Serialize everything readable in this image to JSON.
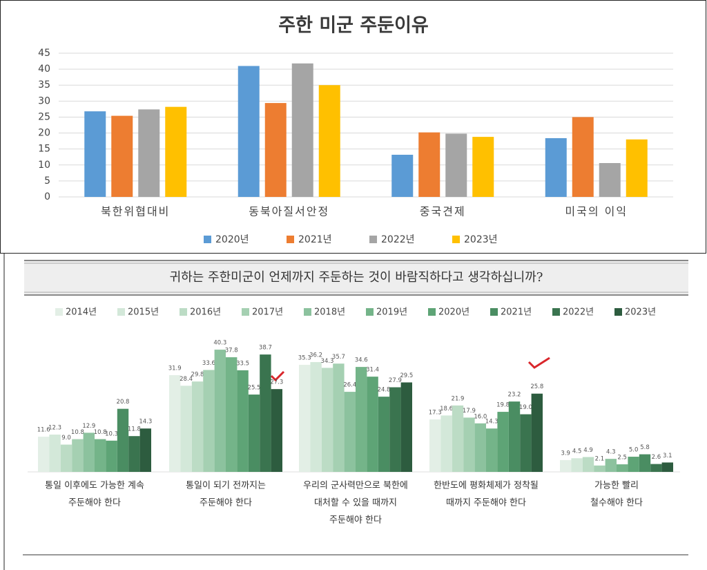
{
  "chart_data": [
    {
      "type": "bar",
      "title": "주한 미군 주둔이유",
      "categories": [
        "북한위협대비",
        "동북아질서안정",
        "중국견제",
        "미국의 이익"
      ],
      "series": [
        {
          "name": "2020년",
          "color": "#5b9bd5",
          "values": [
            26.8,
            41,
            13.2,
            18.4
          ]
        },
        {
          "name": "2021년",
          "color": "#ed7d31",
          "values": [
            25.4,
            29.4,
            20.2,
            25
          ]
        },
        {
          "name": "2022년",
          "color": "#a5a5a5",
          "values": [
            27.4,
            41.8,
            19.8,
            10.6
          ]
        },
        {
          "name": "2023년",
          "color": "#ffc000",
          "values": [
            28.2,
            35,
            18.8,
            18
          ]
        }
      ],
      "ylim": [
        0,
        45
      ],
      "yticks": [
        0,
        5,
        10,
        15,
        20,
        25,
        30,
        35,
        40,
        45
      ],
      "grid": true,
      "legend": "bottom"
    },
    {
      "type": "bar",
      "title": "귀하는 주한미군이 언제까지 주둔하는 것이 바람직하다고 생각하십니까?",
      "categories": [
        [
          "통일 이후에도 가능한 계속",
          "주둔해야 한다"
        ],
        [
          "통일이 되기 전까지는",
          "주둔해야 한다"
        ],
        [
          "우리의 군사력만으로 북한에",
          "대처할 수 있을 때까지",
          "주둔해야 한다"
        ],
        [
          "한반도에 평화체제가 정착될",
          "때까지 주둔해야 한다"
        ],
        [
          "가능한 빨리",
          "철수해야 한다"
        ]
      ],
      "series": [
        {
          "name": "2014년",
          "color": "#e3efe6",
          "values": [
            11.6,
            31.9,
            35.3,
            17.3,
            3.9
          ],
          "value_labels": [
            "11.6",
            "31.9",
            "35.3",
            "17.3",
            "3.9"
          ]
        },
        {
          "name": "2015년",
          "color": "#d3e8d9",
          "values": [
            12.3,
            28.4,
            36.2,
            18.6,
            4.5
          ],
          "value_labels": [
            "12.3",
            "28.4",
            "36.2",
            "18.6",
            "4.5"
          ]
        },
        {
          "name": "2016년",
          "color": "#bcdcc5",
          "values": [
            9.0,
            29.8,
            34.3,
            21.9,
            4.9
          ],
          "value_labels": [
            "9.0",
            "29.8",
            "34.3",
            "21.9",
            "4.9"
          ]
        },
        {
          "name": "2017년",
          "color": "#a5d0b2",
          "values": [
            10.8,
            33.6,
            35.7,
            17.9,
            2.1
          ],
          "value_labels": [
            "10.8",
            "33.6",
            "35.7",
            "17.9",
            "2.1"
          ]
        },
        {
          "name": "2018년",
          "color": "#8cc29e",
          "values": [
            12.9,
            40.3,
            26.4,
            16.0,
            4.3
          ],
          "value_labels": [
            "12.9",
            "40.3",
            "26.4",
            "16.0",
            "4.3"
          ]
        },
        {
          "name": "2019년",
          "color": "#74b489",
          "values": [
            10.8,
            37.8,
            34.6,
            14.3,
            2.5
          ],
          "value_labels": [
            "10.8",
            "37.8",
            "34.6",
            "14.3",
            "2.5"
          ]
        },
        {
          "name": "2020년",
          "color": "#5ea476",
          "values": [
            10.3,
            33.5,
            31.4,
            19.8,
            5.0
          ],
          "value_labels": [
            "10.3",
            "33.5",
            "31.4",
            "19.8",
            "5.0"
          ]
        },
        {
          "name": "2021년",
          "color": "#4a8d62",
          "values": [
            20.8,
            25.5,
            24.8,
            23.2,
            5.8
          ],
          "value_labels": [
            "20.8",
            "25.5",
            "24.8",
            "23.2",
            "5.8"
          ]
        },
        {
          "name": "2022년",
          "color": "#3a744f",
          "values": [
            11.8,
            38.7,
            27.9,
            19.0,
            2.6
          ],
          "value_labels": [
            "11.8",
            "38.7",
            "27.9",
            "19.0",
            "2.6"
          ]
        },
        {
          "name": "2023년",
          "color": "#2d5c3f",
          "values": [
            14.3,
            27.3,
            29.5,
            25.8,
            3.1
          ],
          "value_labels": [
            "14.3",
            "27.3",
            "29.5",
            "25.8",
            "3.1"
          ]
        }
      ],
      "legend": "top"
    }
  ]
}
